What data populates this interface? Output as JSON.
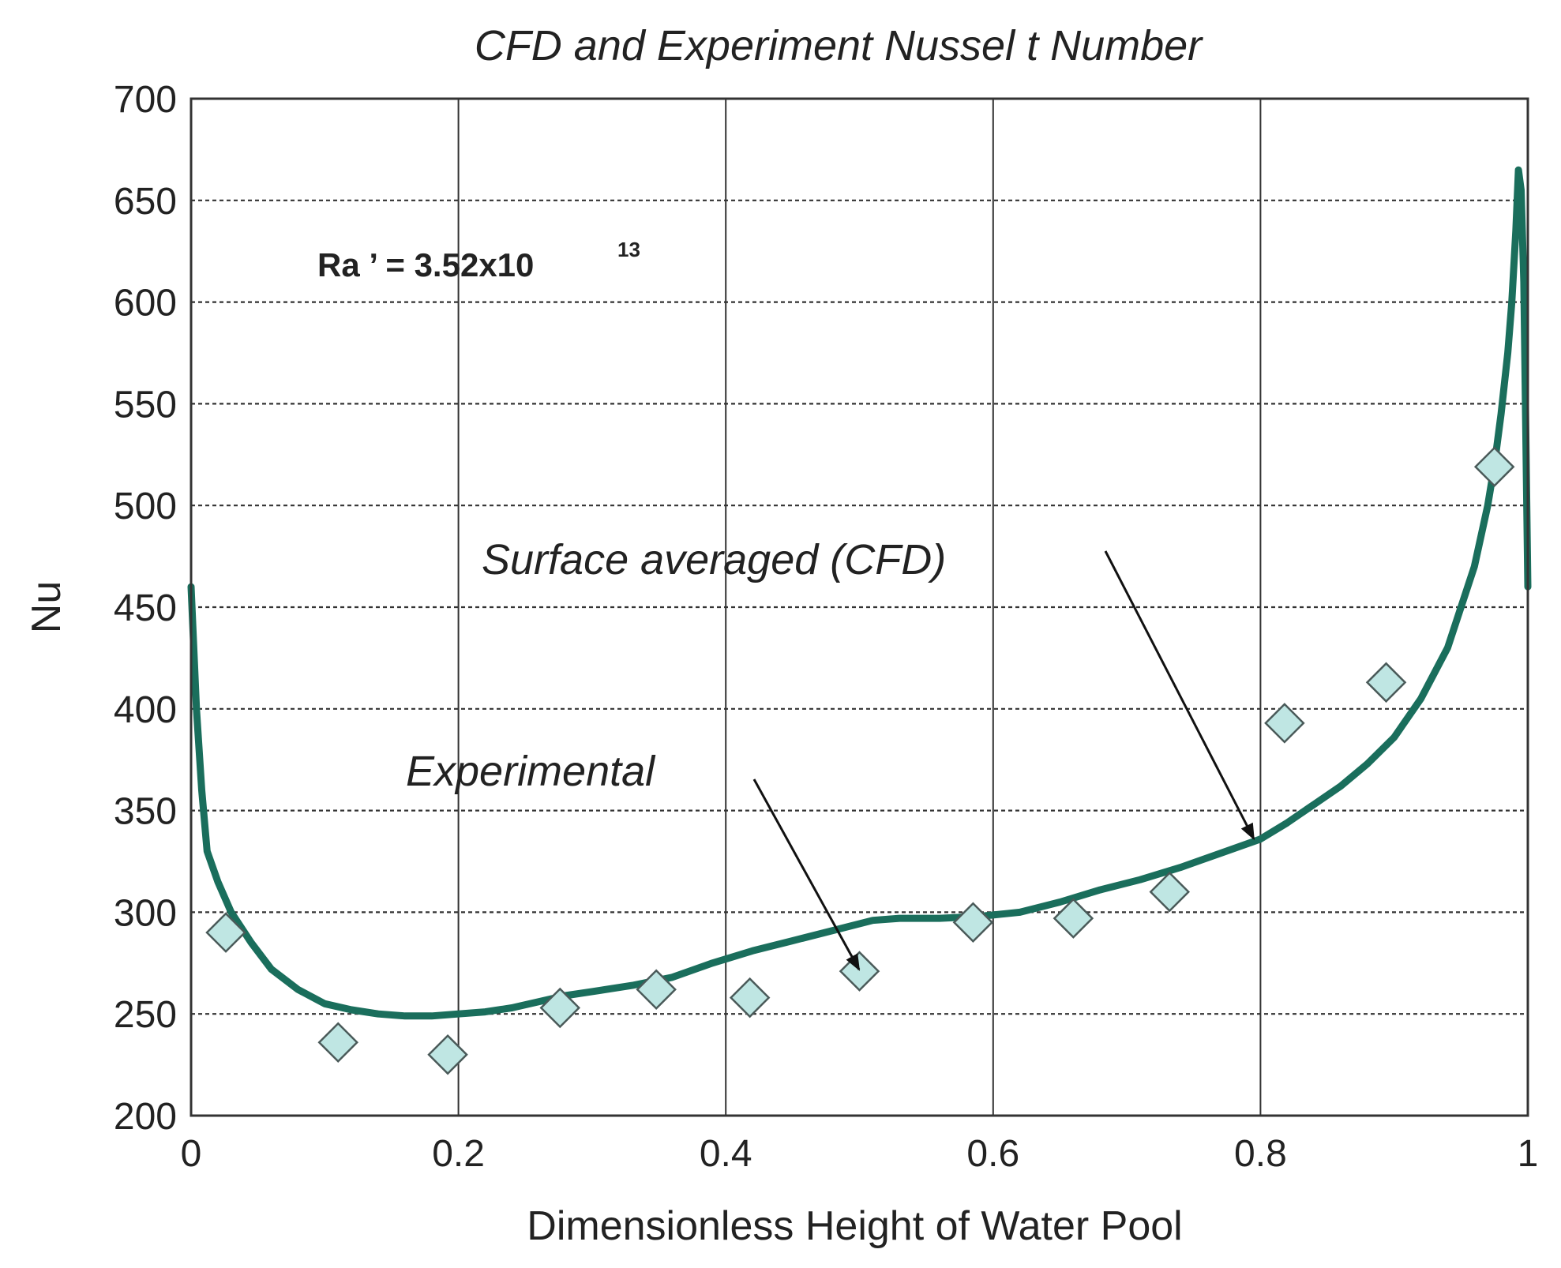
{
  "chart_data": {
    "type": "line",
    "title": "CFD and Experiment Nussel t Number",
    "xlabel": "Dimensionless Height of Water Pool",
    "ylabel": "Nu",
    "xlim": [
      0,
      1
    ],
    "ylim": [
      200,
      700
    ],
    "xticks": [
      0,
      0.2,
      0.4,
      0.6,
      0.8,
      1
    ],
    "xtick_labels": [
      "0",
      "0.2",
      "0.4",
      "0.6",
      "0.8",
      "1"
    ],
    "yticks": [
      200,
      250,
      300,
      350,
      400,
      450,
      500,
      550,
      600,
      650,
      700
    ],
    "ytick_labels": [
      "200",
      "250",
      "300",
      "350",
      "400",
      "450",
      "500",
      "550",
      "600",
      "650",
      "700"
    ],
    "grid": true,
    "series": [
      {
        "name": "Surface averaged (CFD)",
        "style": "line",
        "color": "#1a6e5c",
        "x": [
          0,
          0.004,
          0.008,
          0.012,
          0.02,
          0.03,
          0.045,
          0.06,
          0.08,
          0.1,
          0.12,
          0.14,
          0.16,
          0.18,
          0.2,
          0.22,
          0.24,
          0.26,
          0.28,
          0.3,
          0.33,
          0.36,
          0.39,
          0.42,
          0.45,
          0.48,
          0.51,
          0.53,
          0.56,
          0.59,
          0.62,
          0.65,
          0.68,
          0.71,
          0.74,
          0.77,
          0.8,
          0.82,
          0.84,
          0.86,
          0.88,
          0.9,
          0.92,
          0.94,
          0.96,
          0.97,
          0.975,
          0.98,
          0.985,
          0.988,
          0.991,
          0.993,
          0.995,
          0.997,
          0.998,
          1.0
        ],
        "y": [
          460,
          400,
          360,
          330,
          315,
          300,
          285,
          272,
          262,
          255,
          252,
          250,
          249,
          249,
          250,
          251,
          253,
          256,
          259,
          261,
          264,
          268,
          275,
          281,
          286,
          291,
          296,
          297,
          297,
          298,
          300,
          305,
          311,
          316,
          322,
          329,
          336,
          344,
          353,
          362,
          373,
          386,
          405,
          430,
          470,
          500,
          520,
          545,
          575,
          600,
          635,
          665,
          655,
          610,
          560,
          460
        ]
      },
      {
        "name": "Experimental",
        "style": "markers",
        "marker": "diamond",
        "color": "#bfe6e3",
        "x": [
          0.026,
          0.11,
          0.192,
          0.276,
          0.348,
          0.418,
          0.5,
          0.585,
          0.66,
          0.732,
          0.818,
          0.894,
          0.975
        ],
        "y": [
          290,
          236,
          230,
          253,
          262,
          258,
          271,
          295,
          297,
          310,
          393,
          413,
          519
        ]
      }
    ],
    "annotations": [
      {
        "text": "Surface averaged (CFD)",
        "target_x": 0.795,
        "target_y": 333,
        "text_x": 0.225,
        "text_y": 475
      },
      {
        "text": "Experimental",
        "target_x": 0.5,
        "target_y": 268,
        "text_x": 0.16,
        "text_y": 365
      },
      {
        "text": "Ra  ’ = 3.52x10",
        "superscript": "13",
        "text_x": 0.095,
        "text_y": 620
      }
    ]
  }
}
